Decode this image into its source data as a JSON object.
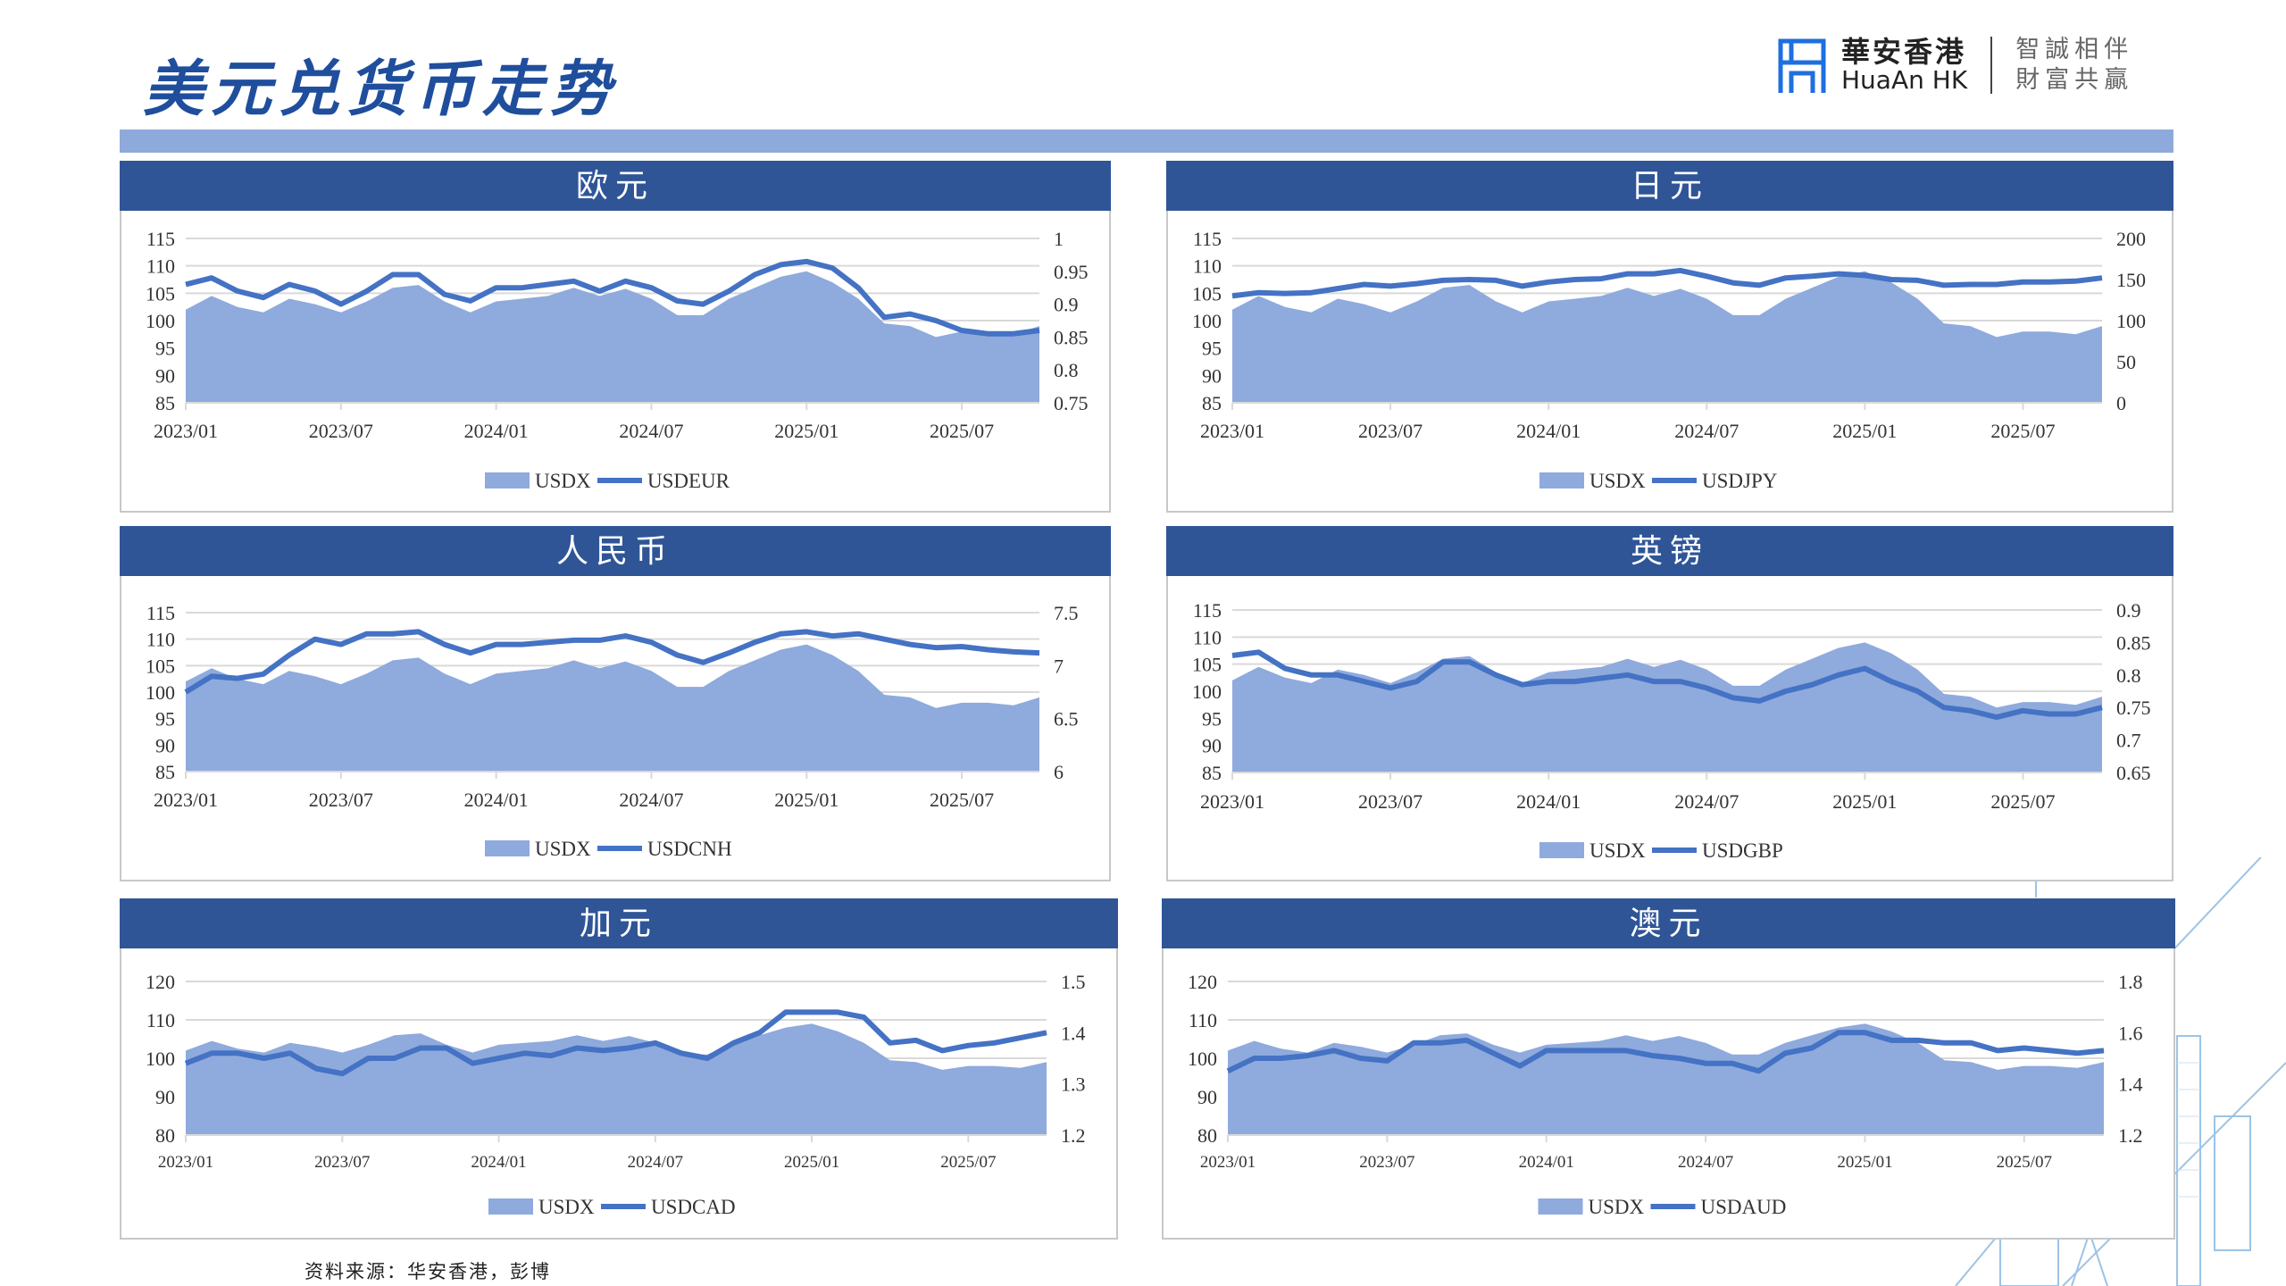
{
  "page": {
    "title": "美元兑货币走势",
    "source": "资料来源：华安香港，彭博",
    "logo": {
      "name_cn": "華安香港",
      "name_en": "HuaAn HK",
      "slogan_line1": "智誠相伴",
      "slogan_line2": "財富共贏"
    },
    "colors": {
      "header": "#2f5597",
      "bar": "#8eaadb",
      "area": "#8faadc",
      "line": "#4472c4",
      "logo": "#1e6fe0"
    }
  },
  "chart_data": [
    {
      "title": "欧元",
      "type": "area+line",
      "x_start": "2023/01",
      "x_end": "2025/10",
      "frequency": "monthly",
      "x_ticks": [
        "2023/01",
        "2023/07",
        "2024/01",
        "2024/07",
        "2025/01",
        "2025/07"
      ],
      "left_axis": {
        "min": 85,
        "max": 115,
        "ticks": [
          "85",
          "90",
          "95",
          "100",
          "105",
          "110",
          "115"
        ]
      },
      "right_axis": {
        "min": 0.75,
        "max": 1,
        "ticks": [
          "0.75",
          "0.8",
          "0.85",
          "0.9",
          "0.95",
          "1"
        ]
      },
      "series": [
        {
          "name": "USDX",
          "type": "area",
          "axis": "left",
          "values": [
            102,
            104.5,
            102.5,
            101.5,
            104,
            103,
            101.5,
            103.5,
            106,
            106.5,
            103.5,
            101.5,
            103.5,
            104,
            104.5,
            106,
            104.5,
            105.8,
            104,
            101,
            101,
            104,
            106,
            108,
            109,
            107,
            104,
            99.5,
            99,
            97,
            98,
            98,
            97.5,
            99
          ]
        },
        {
          "name": "USDEUR",
          "type": "line",
          "axis": "right",
          "values": [
            0.93,
            0.94,
            0.92,
            0.91,
            0.93,
            0.92,
            0.9,
            0.92,
            0.945,
            0.945,
            0.915,
            0.905,
            0.925,
            0.925,
            0.93,
            0.935,
            0.92,
            0.935,
            0.925,
            0.905,
            0.9,
            0.92,
            0.945,
            0.96,
            0.965,
            0.955,
            0.925,
            0.88,
            0.885,
            0.875,
            0.86,
            0.855,
            0.855,
            0.86
          ]
        }
      ]
    },
    {
      "title": "日元",
      "type": "area+line",
      "x_start": "2023/01",
      "x_end": "2025/10",
      "frequency": "monthly",
      "x_ticks": [
        "2023/01",
        "2023/07",
        "2024/01",
        "2024/07",
        "2025/01",
        "2025/07"
      ],
      "left_axis": {
        "min": 85,
        "max": 115,
        "ticks": [
          "85",
          "90",
          "95",
          "100",
          "105",
          "110",
          "115"
        ]
      },
      "right_axis": {
        "min": 0,
        "max": 200,
        "ticks": [
          "0",
          "50",
          "100",
          "150",
          "200"
        ]
      },
      "series": [
        {
          "name": "USDX",
          "type": "area",
          "axis": "left",
          "values": [
            102,
            104.5,
            102.5,
            101.5,
            104,
            103,
            101.5,
            103.5,
            106,
            106.5,
            103.5,
            101.5,
            103.5,
            104,
            104.5,
            106,
            104.5,
            105.8,
            104,
            101,
            101,
            104,
            106,
            108,
            109,
            107,
            104,
            99.5,
            99,
            97,
            98,
            98,
            97.5,
            99
          ]
        },
        {
          "name": "USDJPY",
          "type": "line",
          "axis": "right",
          "values": [
            130,
            134,
            133,
            134,
            139,
            144,
            142,
            145,
            149,
            150,
            149,
            142,
            147,
            150,
            151,
            157,
            157,
            161,
            154,
            146,
            143,
            152,
            154,
            157,
            155,
            150,
            149,
            143,
            144,
            144,
            147,
            147,
            148,
            152
          ]
        }
      ]
    },
    {
      "title": "人民币",
      "type": "area+line",
      "x_start": "2023/01",
      "x_end": "2025/10",
      "frequency": "monthly",
      "x_ticks": [
        "2023/01",
        "2023/07",
        "2024/01",
        "2024/07",
        "2025/01",
        "2025/07"
      ],
      "left_axis": {
        "min": 85,
        "max": 115,
        "ticks": [
          "85",
          "90",
          "95",
          "100",
          "105",
          "110",
          "115"
        ]
      },
      "right_axis": {
        "min": 6,
        "max": 7.5,
        "ticks": [
          "6",
          "6.5",
          "7",
          "7.5"
        ]
      },
      "series": [
        {
          "name": "USDX",
          "type": "area",
          "axis": "left",
          "values": [
            102,
            104.5,
            102.5,
            101.5,
            104,
            103,
            101.5,
            103.5,
            106,
            106.5,
            103.5,
            101.5,
            103.5,
            104,
            104.5,
            106,
            104.5,
            105.8,
            104,
            101,
            101,
            104,
            106,
            108,
            109,
            107,
            104,
            99.5,
            99,
            97,
            98,
            98,
            97.5,
            99
          ]
        },
        {
          "name": "USDCNH",
          "type": "line",
          "axis": "right",
          "values": [
            6.75,
            6.9,
            6.88,
            6.92,
            7.1,
            7.25,
            7.2,
            7.3,
            7.3,
            7.32,
            7.2,
            7.12,
            7.2,
            7.2,
            7.22,
            7.24,
            7.24,
            7.28,
            7.22,
            7.1,
            7.03,
            7.12,
            7.22,
            7.3,
            7.32,
            7.28,
            7.3,
            7.25,
            7.2,
            7.17,
            7.18,
            7.15,
            7.13,
            7.12
          ]
        }
      ]
    },
    {
      "title": "英镑",
      "type": "area+line",
      "x_start": "2023/01",
      "x_end": "2025/10",
      "frequency": "monthly",
      "x_ticks": [
        "2023/01",
        "2023/07",
        "2024/01",
        "2024/07",
        "2025/01",
        "2025/07"
      ],
      "left_axis": {
        "min": 85,
        "max": 115,
        "ticks": [
          "85",
          "90",
          "95",
          "100",
          "105",
          "110",
          "115"
        ]
      },
      "right_axis": {
        "min": 0.65,
        "max": 0.9,
        "ticks": [
          "0.65",
          "0.7",
          "0.75",
          "0.8",
          "0.85",
          "0.9"
        ]
      },
      "series": [
        {
          "name": "USDX",
          "type": "area",
          "axis": "left",
          "values": [
            102,
            104.5,
            102.5,
            101.5,
            104,
            103,
            101.5,
            103.5,
            106,
            106.5,
            103.5,
            101.5,
            103.5,
            104,
            104.5,
            106,
            104.5,
            105.8,
            104,
            101,
            101,
            104,
            106,
            108,
            109,
            107,
            104,
            99.5,
            99,
            97,
            98,
            98,
            97.5,
            99
          ]
        },
        {
          "name": "USDGBP",
          "type": "line",
          "axis": "right",
          "values": [
            0.83,
            0.835,
            0.81,
            0.8,
            0.8,
            0.79,
            0.78,
            0.79,
            0.82,
            0.82,
            0.8,
            0.785,
            0.79,
            0.79,
            0.795,
            0.8,
            0.79,
            0.79,
            0.78,
            0.765,
            0.76,
            0.775,
            0.785,
            0.8,
            0.81,
            0.79,
            0.775,
            0.75,
            0.745,
            0.735,
            0.745,
            0.74,
            0.74,
            0.75
          ]
        }
      ]
    },
    {
      "title": "加元",
      "type": "area+line",
      "x_start": "2023/01",
      "x_end": "2025/10",
      "frequency": "monthly",
      "x_ticks": [
        "2023/01",
        "2023/07",
        "2024/01",
        "2024/07",
        "2025/01",
        "2025/07"
      ],
      "left_axis": {
        "min": 80,
        "max": 120,
        "ticks": [
          "80",
          "90",
          "100",
          "110",
          "120"
        ]
      },
      "right_axis": {
        "min": 1.2,
        "max": 1.5,
        "ticks": [
          "1.2",
          "1.3",
          "1.4",
          "1.5"
        ]
      },
      "series": [
        {
          "name": "USDX",
          "type": "area",
          "axis": "left",
          "values": [
            102,
            104.5,
            102.5,
            101.5,
            104,
            103,
            101.5,
            103.5,
            106,
            106.5,
            103.5,
            101.5,
            103.5,
            104,
            104.5,
            106,
            104.5,
            105.8,
            104,
            101,
            101,
            104,
            106,
            108,
            109,
            107,
            104,
            99.5,
            99,
            97,
            98,
            98,
            97.5,
            99
          ]
        },
        {
          "name": "USDCAD",
          "type": "line",
          "axis": "right",
          "values": [
            1.34,
            1.36,
            1.36,
            1.35,
            1.36,
            1.33,
            1.32,
            1.35,
            1.35,
            1.37,
            1.37,
            1.34,
            1.35,
            1.36,
            1.355,
            1.37,
            1.365,
            1.37,
            1.38,
            1.36,
            1.35,
            1.38,
            1.4,
            1.44,
            1.44,
            1.44,
            1.43,
            1.38,
            1.385,
            1.365,
            1.375,
            1.38,
            1.39,
            1.4
          ]
        }
      ]
    },
    {
      "title": "澳元",
      "type": "area+line",
      "x_start": "2023/01",
      "x_end": "2025/10",
      "frequency": "monthly",
      "x_ticks": [
        "2023/01",
        "2023/07",
        "2024/01",
        "2024/07",
        "2025/01",
        "2025/07"
      ],
      "left_axis": {
        "min": 80,
        "max": 120,
        "ticks": [
          "80",
          "90",
          "100",
          "110",
          "120"
        ]
      },
      "right_axis": {
        "min": 1.2,
        "max": 1.8,
        "ticks": [
          "1.2",
          "1.4",
          "1.6",
          "1.8"
        ]
      },
      "series": [
        {
          "name": "USDX",
          "type": "area",
          "axis": "left",
          "values": [
            102,
            104.5,
            102.5,
            101.5,
            104,
            103,
            101.5,
            103.5,
            106,
            106.5,
            103.5,
            101.5,
            103.5,
            104,
            104.5,
            106,
            104.5,
            105.8,
            104,
            101,
            101,
            104,
            106,
            108,
            109,
            107,
            104,
            99.5,
            99,
            97,
            98,
            98,
            97.5,
            99
          ]
        },
        {
          "name": "USDAUD",
          "type": "line",
          "axis": "right",
          "values": [
            1.45,
            1.5,
            1.5,
            1.51,
            1.53,
            1.5,
            1.49,
            1.56,
            1.56,
            1.57,
            1.52,
            1.47,
            1.53,
            1.53,
            1.53,
            1.53,
            1.51,
            1.5,
            1.48,
            1.48,
            1.45,
            1.52,
            1.54,
            1.6,
            1.6,
            1.57,
            1.57,
            1.56,
            1.56,
            1.53,
            1.54,
            1.53,
            1.52,
            1.53
          ]
        }
      ]
    }
  ]
}
